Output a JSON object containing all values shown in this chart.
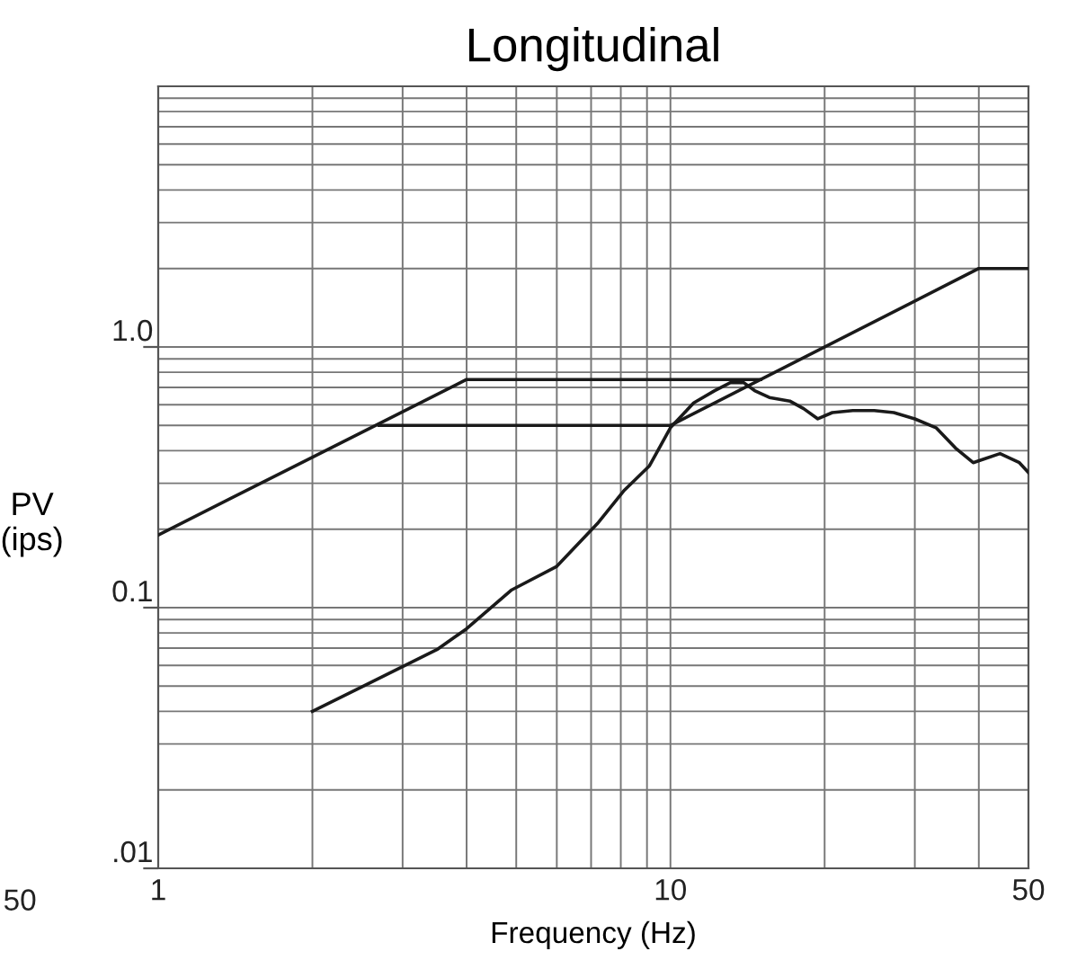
{
  "chart_data": {
    "type": "line",
    "title": "Longitudinal",
    "xlabel": "Frequency (Hz)",
    "ylabel": "PV\n(ips)",
    "log": "xy",
    "grid": true,
    "legend": false,
    "marker": "none",
    "line_style": "solid",
    "xlim": [
      1,
      50
    ],
    "ylim": [
      0.01,
      10
    ],
    "xticks": [
      1,
      {
        "value": 2,
        "label": null
      },
      {
        "value": 3,
        "label": null
      },
      {
        "value": 4,
        "label": null
      },
      {
        "value": 5,
        "label": null
      },
      {
        "value": 6,
        "label": null
      },
      {
        "value": 7,
        "label": null
      },
      {
        "value": 8,
        "label": null
      },
      {
        "value": 9,
        "label": null
      },
      10,
      {
        "value": 20,
        "label": null
      },
      {
        "value": 30,
        "label": null
      },
      {
        "value": 40,
        "label": null
      },
      50
    ],
    "yticks": [
      {
        "value": 0.01,
        "label": ".01"
      },
      {
        "value": 0.02,
        "label": null
      },
      {
        "value": 0.03,
        "label": null
      },
      {
        "value": 0.04,
        "label": null
      },
      {
        "value": 0.05,
        "label": null
      },
      {
        "value": 0.06,
        "label": null
      },
      {
        "value": 0.07,
        "label": null
      },
      {
        "value": 0.08,
        "label": null
      },
      {
        "value": 0.09,
        "label": null
      },
      0.1,
      {
        "value": 0.2,
        "label": null
      },
      {
        "value": 0.3,
        "label": null
      },
      {
        "value": 0.4,
        "label": null
      },
      {
        "value": 0.5,
        "label": null
      },
      {
        "value": 0.6,
        "label": null
      },
      {
        "value": 0.7,
        "label": null
      },
      {
        "value": 0.8,
        "label": null
      },
      {
        "value": 0.9,
        "label": null
      },
      {
        "value": 1,
        "label": "1.0"
      },
      {
        "value": 2,
        "label": null
      },
      {
        "value": 3,
        "label": null
      },
      {
        "value": 4,
        "label": null
      },
      {
        "value": 5,
        "label": null
      },
      {
        "value": 6,
        "label": null
      },
      {
        "value": 7,
        "label": null
      },
      {
        "value": 8,
        "label": null
      },
      {
        "value": 9,
        "label": null
      },
      {
        "value": 10,
        "label": null
      }
    ],
    "annotations": [
      "50"
    ],
    "series": [
      {
        "color": "#1a1a1a",
        "x": [
          1,
          4,
          15
        ],
        "values": [
          0.19,
          0.75,
          0.75
        ]
      },
      {
        "color": "#1a1a1a",
        "x": [
          2.7,
          10,
          40,
          50
        ],
        "values": [
          0.5,
          0.5,
          2,
          2
        ]
      },
      {
        "color": "#1a1a1a",
        "x": [
          2,
          3.5,
          4,
          4.9,
          6,
          7.2,
          8.1,
          9.1,
          10,
          11.1,
          12.2,
          13.1,
          13.9,
          14.6,
          15.6,
          17.1,
          18.2,
          19.4,
          20.7,
          22.7,
          25,
          27.3,
          30,
          33,
          36,
          39,
          44,
          48,
          50
        ],
        "values": [
          0.04,
          0.069,
          0.083,
          0.117,
          0.144,
          0.21,
          0.28,
          0.35,
          0.49,
          0.61,
          0.68,
          0.73,
          0.73,
          0.68,
          0.64,
          0.62,
          0.58,
          0.53,
          0.56,
          0.57,
          0.57,
          0.56,
          0.53,
          0.49,
          0.41,
          0.36,
          0.39,
          0.36,
          0.33
        ]
      }
    ]
  }
}
